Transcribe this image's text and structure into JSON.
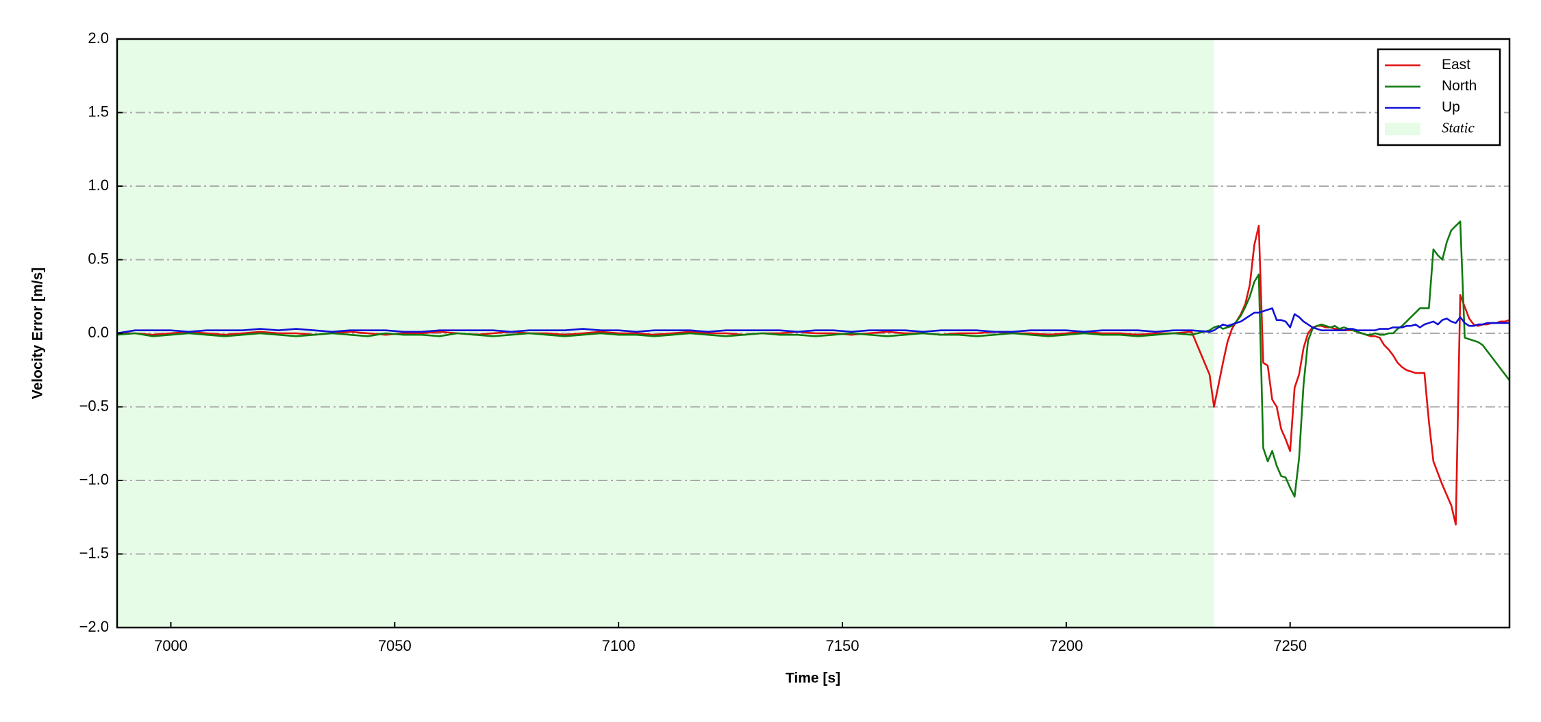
{
  "chart_data": {
    "type": "line",
    "xlabel": "Time [s]",
    "ylabel": "Velocity Error [m/s]",
    "x": [
      6988,
      6992,
      6996,
      7000,
      7004,
      7008,
      7012,
      7016,
      7020,
      7024,
      7028,
      7032,
      7036,
      7040,
      7044,
      7048,
      7052,
      7056,
      7060,
      7064,
      7068,
      7072,
      7076,
      7080,
      7084,
      7088,
      7092,
      7096,
      7100,
      7104,
      7108,
      7112,
      7116,
      7120,
      7124,
      7128,
      7132,
      7136,
      7140,
      7144,
      7148,
      7152,
      7156,
      7160,
      7164,
      7168,
      7172,
      7176,
      7180,
      7184,
      7188,
      7192,
      7196,
      7200,
      7204,
      7208,
      7212,
      7216,
      7220,
      7224,
      7228,
      7232,
      7233,
      7234,
      7235,
      7236,
      7237,
      7238,
      7239,
      7240,
      7241,
      7242,
      7243,
      7244,
      7245,
      7246,
      7247,
      7248,
      7249,
      7250,
      7251,
      7252,
      7253,
      7254,
      7255,
      7256,
      7257,
      7258,
      7259,
      7260,
      7261,
      7262,
      7263,
      7264,
      7265,
      7266,
      7267,
      7268,
      7269,
      7270,
      7271,
      7272,
      7273,
      7274,
      7275,
      7276,
      7277,
      7278,
      7279,
      7280,
      7281,
      7282,
      7283,
      7284,
      7285,
      7286,
      7287,
      7288,
      7289,
      7290,
      7291,
      7292,
      7293,
      7294,
      7295,
      7296,
      7297,
      7298,
      7299
    ],
    "series": [
      {
        "name": "East",
        "color": "#e01010",
        "values": [
          0.0,
          0.0,
          -0.01,
          0.0,
          0.01,
          0.0,
          -0.01,
          0.0,
          0.01,
          0.0,
          0.0,
          -0.01,
          0.0,
          0.01,
          0.0,
          -0.01,
          0.0,
          0.0,
          0.01,
          0.0,
          -0.01,
          0.0,
          0.01,
          0.0,
          0.0,
          -0.01,
          0.0,
          0.01,
          0.0,
          0.0,
          -0.01,
          0.0,
          0.01,
          0.0,
          0.0,
          -0.01,
          0.0,
          0.0,
          0.01,
          0.0,
          0.0,
          -0.01,
          0.0,
          0.01,
          0.0,
          0.0,
          -0.01,
          0.0,
          0.0,
          0.01,
          0.0,
          0.0,
          -0.01,
          0.0,
          0.01,
          0.0,
          0.0,
          -0.01,
          0.0,
          0.0,
          0.01,
          -0.28,
          -0.5,
          -0.35,
          -0.2,
          -0.06,
          0.03,
          0.08,
          0.13,
          0.2,
          0.33,
          0.6,
          0.73,
          -0.2,
          -0.22,
          -0.45,
          -0.5,
          -0.65,
          -0.72,
          -0.8,
          -0.37,
          -0.28,
          -0.1,
          0.0,
          0.04,
          0.05,
          0.05,
          0.04,
          0.04,
          0.03,
          0.03,
          0.02,
          0.02,
          0.02,
          0.01,
          0.0,
          -0.01,
          -0.02,
          -0.02,
          -0.03,
          -0.08,
          -0.11,
          -0.15,
          -0.2,
          -0.23,
          -0.25,
          -0.26,
          -0.27,
          -0.27,
          -0.27,
          -0.6,
          -0.87,
          -0.95,
          -1.03,
          -1.1,
          -1.17,
          -1.3,
          0.26,
          0.18,
          0.1,
          0.06,
          0.05,
          0.06,
          0.06,
          0.07,
          0.07,
          0.08,
          0.08,
          0.09
        ]
      },
      {
        "name": "North",
        "color": "#107a10",
        "values": [
          -0.01,
          0.0,
          -0.02,
          -0.01,
          0.0,
          -0.01,
          -0.02,
          -0.01,
          0.0,
          -0.01,
          -0.02,
          -0.01,
          0.0,
          -0.01,
          -0.02,
          0.0,
          -0.01,
          -0.01,
          -0.02,
          0.0,
          -0.01,
          -0.02,
          -0.01,
          0.0,
          -0.01,
          -0.02,
          -0.01,
          0.0,
          -0.01,
          -0.01,
          -0.02,
          -0.01,
          0.0,
          -0.01,
          -0.02,
          -0.01,
          0.0,
          -0.01,
          -0.01,
          -0.02,
          -0.01,
          0.0,
          -0.01,
          -0.02,
          -0.01,
          0.0,
          -0.01,
          -0.01,
          -0.02,
          -0.01,
          0.0,
          -0.01,
          -0.02,
          -0.01,
          0.0,
          -0.01,
          -0.01,
          -0.02,
          -0.01,
          0.0,
          -0.01,
          0.02,
          0.04,
          0.05,
          0.03,
          0.04,
          0.05,
          0.08,
          0.12,
          0.18,
          0.25,
          0.35,
          0.4,
          -0.78,
          -0.87,
          -0.8,
          -0.9,
          -0.97,
          -0.98,
          -1.05,
          -1.11,
          -0.85,
          -0.35,
          -0.05,
          0.03,
          0.05,
          0.06,
          0.05,
          0.04,
          0.05,
          0.03,
          0.04,
          0.03,
          0.02,
          0.01,
          0.0,
          -0.01,
          -0.01,
          0.0,
          -0.01,
          -0.01,
          0.0,
          0.0,
          0.03,
          0.05,
          0.08,
          0.11,
          0.14,
          0.17,
          0.17,
          0.17,
          0.57,
          0.53,
          0.5,
          0.62,
          0.7,
          0.73,
          0.76,
          -0.03,
          -0.04,
          -0.05,
          -0.06,
          -0.08,
          -0.12,
          -0.16,
          -0.2,
          -0.24,
          -0.28,
          -0.32
        ]
      },
      {
        "name": "Up",
        "color": "#1010d8",
        "values": [
          0.0,
          0.02,
          0.02,
          0.02,
          0.01,
          0.02,
          0.02,
          0.02,
          0.03,
          0.02,
          0.03,
          0.02,
          0.01,
          0.02,
          0.02,
          0.02,
          0.01,
          0.01,
          0.02,
          0.02,
          0.02,
          0.02,
          0.01,
          0.02,
          0.02,
          0.02,
          0.03,
          0.02,
          0.02,
          0.01,
          0.02,
          0.02,
          0.02,
          0.01,
          0.02,
          0.02,
          0.02,
          0.02,
          0.01,
          0.02,
          0.02,
          0.01,
          0.02,
          0.02,
          0.02,
          0.01,
          0.02,
          0.02,
          0.02,
          0.01,
          0.01,
          0.02,
          0.02,
          0.02,
          0.01,
          0.02,
          0.02,
          0.02,
          0.01,
          0.02,
          0.02,
          0.01,
          0.02,
          0.04,
          0.06,
          0.05,
          0.06,
          0.07,
          0.08,
          0.1,
          0.12,
          0.14,
          0.14,
          0.15,
          0.16,
          0.17,
          0.09,
          0.09,
          0.08,
          0.04,
          0.13,
          0.11,
          0.08,
          0.06,
          0.04,
          0.03,
          0.02,
          0.02,
          0.02,
          0.02,
          0.02,
          0.02,
          0.03,
          0.03,
          0.02,
          0.02,
          0.02,
          0.02,
          0.02,
          0.03,
          0.03,
          0.03,
          0.04,
          0.04,
          0.04,
          0.05,
          0.05,
          0.06,
          0.04,
          0.06,
          0.07,
          0.08,
          0.06,
          0.09,
          0.1,
          0.08,
          0.07,
          0.11,
          0.07,
          0.05,
          0.05,
          0.06,
          0.06,
          0.07,
          0.07,
          0.07,
          0.07,
          0.07,
          0.07
        ]
      }
    ],
    "spans": [
      {
        "name": "Static",
        "range": [
          6988,
          7233
        ],
        "color": "#e6fce6"
      }
    ],
    "xlim": [
      6988,
      7299
    ],
    "ylim": [
      -2,
      2
    ],
    "xticks": [
      7000,
      7050,
      7100,
      7150,
      7200,
      7250
    ],
    "yticks": [
      {
        "value": -2,
        "label": "−2.0"
      },
      {
        "value": -1.5,
        "label": "−1.5"
      },
      {
        "value": -1,
        "label": "−1.0"
      },
      {
        "value": -0.5,
        "label": "−0.5"
      },
      {
        "value": 0,
        "label": "0.0"
      },
      {
        "value": 0.5,
        "label": "0.5"
      },
      {
        "value": 1,
        "label": "1.0"
      },
      {
        "value": 1.5,
        "label": "1.5"
      },
      {
        "value": 2,
        "label": "2.0"
      }
    ],
    "grid": true,
    "legend": "upper right"
  }
}
